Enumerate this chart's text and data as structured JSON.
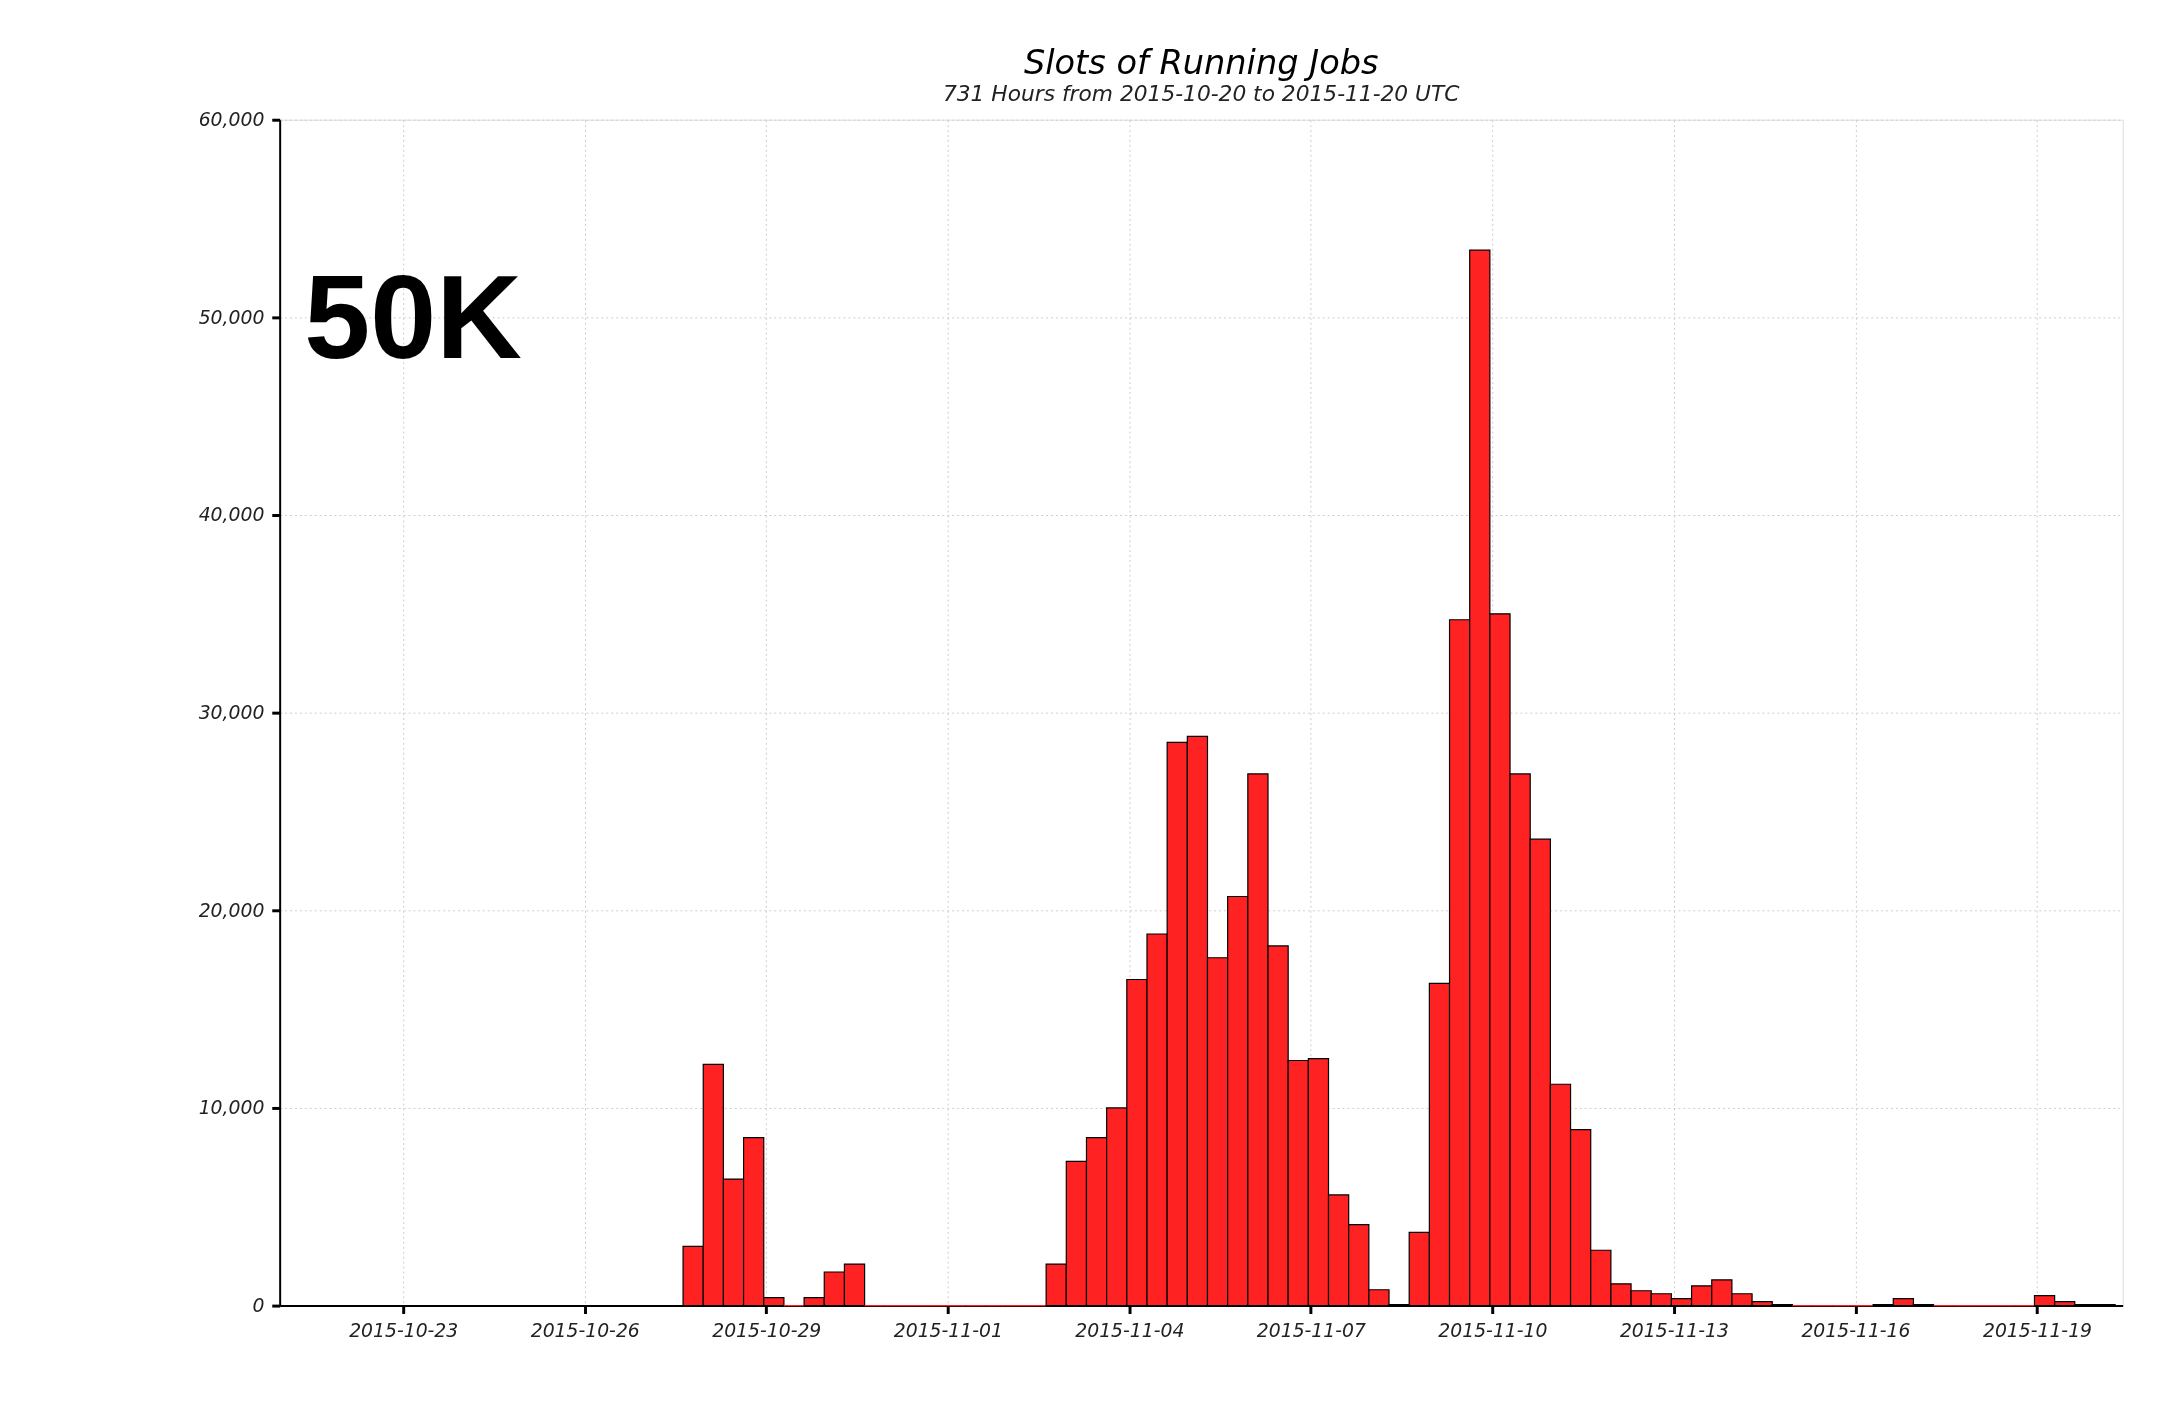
{
  "chart_data": {
    "type": "histogram",
    "title": "Slots of Running Jobs",
    "subtitle": "731 Hours from 2015-10-20 to 2015-11-20 UTC",
    "annotations": [
      "50K"
    ],
    "color": "#ff2222",
    "bins": [
      "2015-10-27T15:00",
      "2015-10-27T23:00",
      "2015-10-28T07:00",
      "2015-10-28T15:00",
      "2015-10-28T23:00",
      "2015-10-29T07:00",
      "2015-10-29T15:00",
      "2015-10-29T23:00",
      "2015-10-30T07:00",
      "2015-10-30T15:00",
      "2015-10-30T23:00",
      "2015-10-31T07:00",
      "2015-10-31T15:00",
      "2015-10-31T23:00",
      "2015-11-01T07:00",
      "2015-11-01T15:00",
      "2015-11-01T23:00",
      "2015-11-02T07:00",
      "2015-11-02T15:00",
      "2015-11-02T23:00",
      "2015-11-03T07:00",
      "2015-11-03T15:00",
      "2015-11-03T23:00",
      "2015-11-04T07:00",
      "2015-11-04T15:00",
      "2015-11-04T23:00",
      "2015-11-05T07:00",
      "2015-11-05T15:00",
      "2015-11-05T23:00",
      "2015-11-06T07:00",
      "2015-11-06T15:00",
      "2015-11-06T23:00",
      "2015-11-07T07:00",
      "2015-11-07T15:00",
      "2015-11-07T23:00",
      "2015-11-08T07:00",
      "2015-11-08T15:00",
      "2015-11-08T23:00",
      "2015-11-09T07:00",
      "2015-11-09T15:00",
      "2015-11-09T23:00",
      "2015-11-10T07:00",
      "2015-11-10T15:00",
      "2015-11-10T23:00",
      "2015-11-11T07:00",
      "2015-11-11T15:00",
      "2015-11-11T23:00",
      "2015-11-12T07:00",
      "2015-11-12T15:00",
      "2015-11-12T23:00",
      "2015-11-13T07:00",
      "2015-11-13T15:00",
      "2015-11-13T23:00",
      "2015-11-14T07:00",
      "2015-11-14T15:00",
      "2015-11-14T23:00",
      "2015-11-15T07:00",
      "2015-11-15T15:00",
      "2015-11-15T23:00",
      "2015-11-16T07:00",
      "2015-11-16T15:00",
      "2015-11-16T23:00",
      "2015-11-17T07:00",
      "2015-11-17T15:00",
      "2015-11-17T23:00",
      "2015-11-18T07:00",
      "2015-11-18T15:00",
      "2015-11-18T23:00",
      "2015-11-19T07:00",
      "2015-11-19T15:00",
      "2015-11-19T23:00",
      "2015-11-20T07:00"
    ],
    "values": [
      3000,
      12200,
      6400,
      8500,
      400,
      0,
      400,
      1700,
      2100,
      0,
      0,
      0,
      0,
      0,
      0,
      0,
      0,
      0,
      2100,
      7300,
      8500,
      10000,
      16500,
      18800,
      28500,
      28800,
      17600,
      20700,
      26900,
      18200,
      12400,
      12500,
      5600,
      4100,
      800,
      50,
      3700,
      16300,
      34700,
      53400,
      35000,
      26900,
      23600,
      11200,
      8900,
      2800,
      1100,
      750,
      600,
      350,
      1000,
      1300,
      600,
      200,
      50,
      0,
      0,
      0,
      0,
      50,
      350,
      50,
      0,
      0,
      0,
      0,
      0,
      500,
      200,
      50,
      50
    ],
    "xlim": [
      "2015-10-20T23:00",
      "2015-11-20T10:00"
    ],
    "xticks": [
      "2015-10-23",
      "2015-10-26",
      "2015-10-29",
      "2015-11-01",
      "2015-11-04",
      "2015-11-07",
      "2015-11-10",
      "2015-11-13",
      "2015-11-16",
      "2015-11-19"
    ],
    "ylim": [
      0,
      60000
    ],
    "yticks": [
      0,
      {
        "value": 10000,
        "label": "10,000"
      },
      {
        "value": 20000,
        "label": "20,000"
      },
      {
        "value": 30000,
        "label": "30,000"
      },
      {
        "value": 40000,
        "label": "40,000"
      },
      {
        "value": 50000,
        "label": "50,000"
      },
      {
        "value": 60000,
        "label": "60,000"
      }
    ],
    "grid": true
  }
}
